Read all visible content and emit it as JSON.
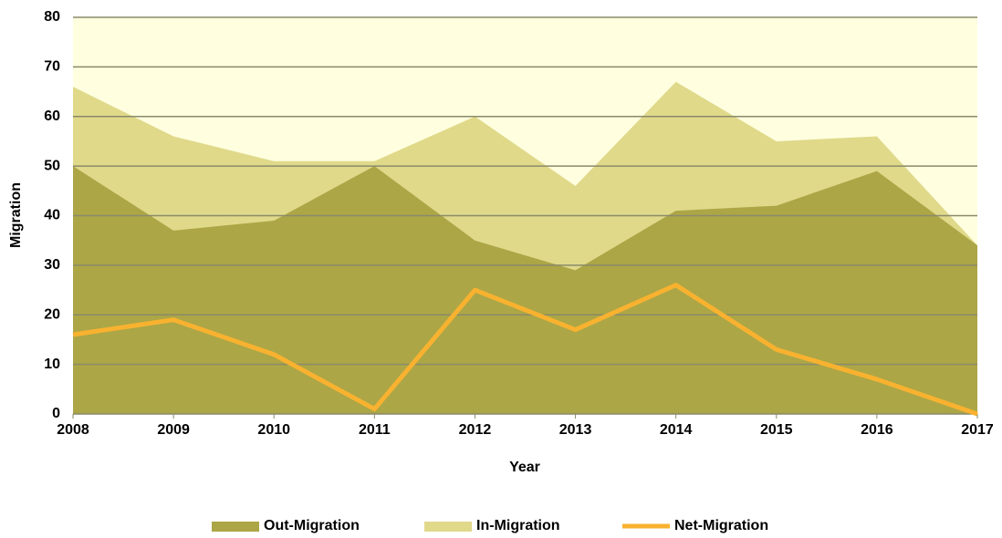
{
  "chart_data": {
    "type": "area-line",
    "x_label": "Year",
    "y_label": "Migration",
    "x": [
      2008,
      2009,
      2010,
      2011,
      2012,
      2013,
      2014,
      2015,
      2016,
      2017
    ],
    "xlim": [
      2008,
      2017
    ],
    "xticks": [
      2008,
      2009,
      2010,
      2011,
      2012,
      2013,
      2014,
      2015,
      2016,
      2017
    ],
    "ylim": [
      0,
      80
    ],
    "yticks": [
      0,
      10,
      20,
      30,
      40,
      50,
      60,
      70,
      80
    ],
    "grid": true,
    "legend": "bottom",
    "series": [
      {
        "name": "Out-Migration",
        "kind": "area",
        "color": "#aca646",
        "values": [
          50,
          37,
          39,
          50,
          35,
          29,
          41,
          42,
          49,
          34
        ]
      },
      {
        "name": "In-Migration",
        "kind": "area",
        "color": "#e0d98a",
        "values": [
          66,
          56,
          51,
          51,
          60,
          46,
          67,
          55,
          56,
          34
        ]
      },
      {
        "name": "Net-Migration",
        "kind": "line",
        "color": "#f8b230",
        "values": [
          16,
          19,
          12,
          1,
          25,
          17,
          26,
          13,
          7,
          0
        ]
      }
    ]
  }
}
